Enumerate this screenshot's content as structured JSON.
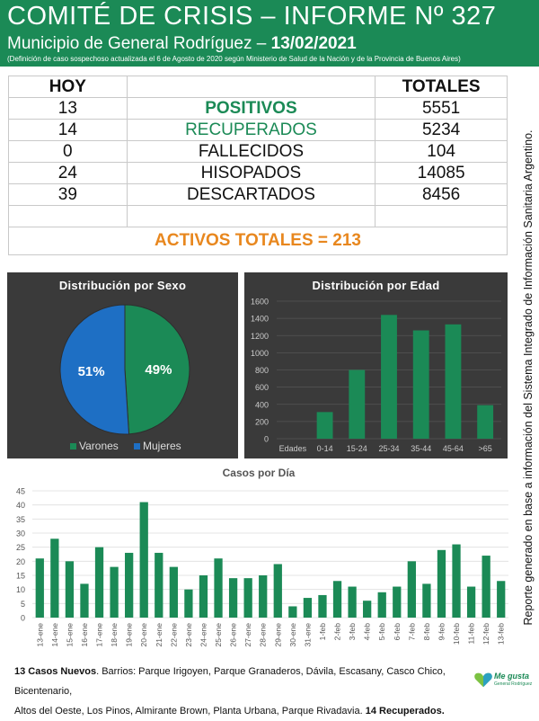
{
  "header": {
    "title": "COMITÉ DE CRISIS – INFORME Nº 327",
    "subtitle_prefix": "Municipio de General Rodríguez –",
    "date": "13/02/2021",
    "note": "(Definición de caso sospechoso actualizada el 6 de Agosto de 2020 según Ministerio de Salud de la Nación y de la Provincia de Buenos Aires)"
  },
  "table": {
    "hoy_header": "HOY",
    "totales_header": "TOTALES",
    "rows": [
      {
        "hoy": "13",
        "label": "POSITIVOS",
        "total": "5551"
      },
      {
        "hoy": "14",
        "label": "RECUPERADOS",
        "total": "5234"
      },
      {
        "hoy": "0",
        "label": "FALLECIDOS",
        "total": "104"
      },
      {
        "hoy": "24",
        "label": "HISOPADOS",
        "total": "14085"
      },
      {
        "hoy": "39",
        "label": "DESCARTADOS",
        "total": "8456"
      }
    ],
    "activos": "ACTIVOS TOTALES = 213"
  },
  "side_note": "Reporte generado en base a información del Sistema Integrado de Información Sanitaria Argentino.",
  "colors": {
    "brand_green": "#1b8a56",
    "accent_orange": "#e8871e",
    "mujeres_blue": "#1e6fc4",
    "panel_bg": "#3a3a3a"
  },
  "chart_data": [
    {
      "type": "pie",
      "title": "Distribución por Sexo",
      "categories": [
        "Varones",
        "Mujeres"
      ],
      "values": [
        49,
        51
      ],
      "labels": [
        "49%",
        "51%"
      ],
      "legend": "bottom"
    },
    {
      "type": "bar",
      "title": "Distribución por Edad",
      "axis_label": "Edades",
      "categories": [
        "0-14",
        "15-24",
        "25-34",
        "35-44",
        "45-64",
        ">65"
      ],
      "values": [
        310,
        800,
        1440,
        1260,
        1330,
        390
      ],
      "ylim": [
        0,
        1600
      ],
      "yticks": [
        "0",
        "200",
        "400",
        "600",
        "800",
        "1000",
        "1200",
        "1400",
        "1600"
      ],
      "grid": true
    },
    {
      "type": "bar",
      "title": "Casos por Día",
      "categories": [
        "13-ene",
        "14-ene",
        "15-ene",
        "16-ene",
        "17-ene",
        "18-ene",
        "19-ene",
        "20-ene",
        "21-ene",
        "22-ene",
        "23-ene",
        "24-ene",
        "25-ene",
        "26-ene",
        "27-ene",
        "28-ene",
        "29-ene",
        "30-ene",
        "31-ene",
        "1-feb",
        "2-feb",
        "3-feb",
        "4-feb",
        "5-feb",
        "6-feb",
        "7-feb",
        "8-feb",
        "9-feb",
        "10-feb",
        "11-feb",
        "12-feb",
        "13-feb"
      ],
      "values": [
        21,
        28,
        20,
        12,
        25,
        18,
        23,
        41,
        23,
        18,
        10,
        15,
        21,
        14,
        14,
        15,
        19,
        4,
        7,
        8,
        13,
        11,
        6,
        9,
        11,
        20,
        12,
        24,
        26,
        11,
        22,
        13
      ],
      "ylim": [
        0,
        45
      ],
      "yticks": [
        "0",
        "5",
        "10",
        "15",
        "20",
        "25",
        "30",
        "35",
        "40",
        "45"
      ],
      "grid": true
    }
  ],
  "footer": {
    "nuevos": "13 Casos Nuevos",
    "barrios": ". Barrios: Parque Irigoyen, Parque Granaderos, Dávila, Escasany, Casco Chico, Bicentenario,",
    "barrios2": "Altos del Oeste, Los Pinos, Almirante Brown, Planta Urbana, Parque Rivadavia.",
    "recuperados": "14 Recuperados."
  },
  "logo": {
    "text": "Me gusta",
    "subtext": "General Rodríguez"
  }
}
